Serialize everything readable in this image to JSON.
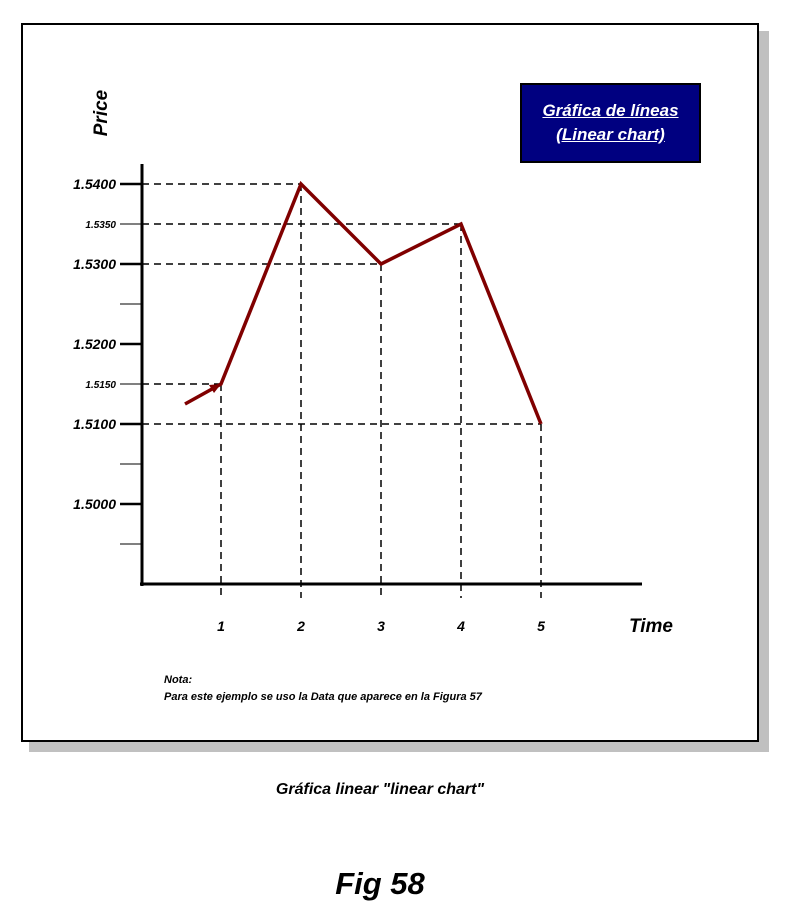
{
  "chart_data": {
    "type": "line",
    "title": "Gráfica de líneas\n(Linear chart)",
    "title_lines": [
      "Gráfica de líneas",
      "(Linear chart)"
    ],
    "xlabel": "Time",
    "ylabel": "Price",
    "x_ticks": [
      "1",
      "2",
      "3",
      "4",
      "5"
    ],
    "y_ticks": [
      {
        "value": 1.54,
        "label": "1.5400",
        "major": true
      },
      {
        "value": 1.535,
        "label": "1.5350",
        "major": false
      },
      {
        "value": 1.53,
        "label": "1.5300",
        "major": true
      },
      {
        "value": 1.525,
        "label": "",
        "major": false
      },
      {
        "value": 1.52,
        "label": "1.5200",
        "major": true
      },
      {
        "value": 1.515,
        "label": "1.5150",
        "major": false
      },
      {
        "value": 1.51,
        "label": "1.5100",
        "major": true
      },
      {
        "value": 1.505,
        "label": "",
        "major": false
      },
      {
        "value": 1.5,
        "label": "1.5000",
        "major": true
      },
      {
        "value": 1.495,
        "label": "",
        "major": false
      }
    ],
    "ylim": [
      1.49,
      1.5425
    ],
    "xlim": [
      0,
      6.25
    ],
    "series": [
      {
        "x": [
          0.55,
          1,
          2,
          3,
          4,
          5
        ],
        "values": [
          1.5125,
          1.515,
          1.54,
          1.53,
          1.535,
          1.51
        ],
        "color": "#800000"
      }
    ],
    "guides": "dashed lines from each point to both axes",
    "arrow_at_start": true,
    "legend_box_color": "#000080"
  },
  "note": {
    "label": "Nota:",
    "text": "Para este ejemplo se uso la Data que aparece en la Figura 57"
  },
  "caption": "Gráfica linear \"linear chart\"",
  "figure_label": "Fig 58"
}
